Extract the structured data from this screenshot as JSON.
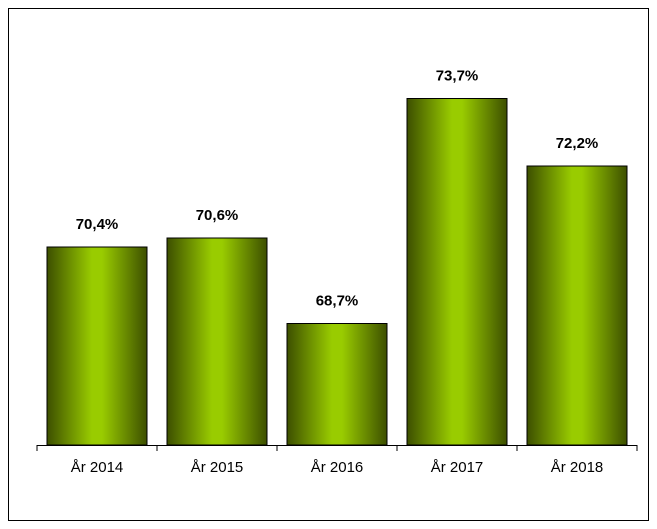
{
  "chart_data": {
    "type": "bar",
    "categories": [
      "År 2014",
      "År 2015",
      "År 2016",
      "År 2017",
      "År 2018"
    ],
    "values": [
      70.4,
      70.6,
      68.7,
      73.7,
      72.2
    ],
    "value_labels": [
      "70,4%",
      "70,6%",
      "68,7%",
      "73,7%",
      "72,2%"
    ],
    "color": "#99cc00",
    "ylim": [
      66,
      75
    ]
  }
}
